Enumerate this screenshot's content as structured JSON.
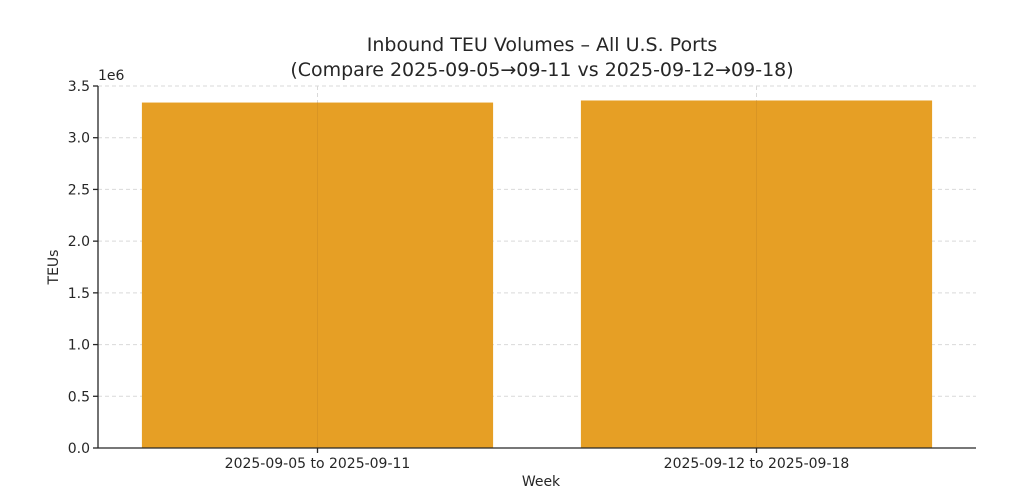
{
  "chart_data": {
    "type": "bar",
    "title": "Inbound TEU Volumes – All U.S. Ports",
    "subtitle": "(Compare 2025-09-05→09-11 vs 2025-09-12→09-18)",
    "xlabel": "Week",
    "ylabel": "TEUs",
    "y_offset_label": "1e6",
    "categories": [
      "2025-09-05 to 2025-09-11",
      "2025-09-12 to 2025-09-18"
    ],
    "values": [
      3340000,
      3360000
    ],
    "ylim": [
      0,
      3500000
    ],
    "y_ticks": [
      0,
      500000,
      1000000,
      1500000,
      2000000,
      2500000,
      3000000,
      3500000
    ],
    "y_tick_labels": [
      "0.0",
      "0.5",
      "1.0",
      "1.5",
      "2.0",
      "2.5",
      "3.0",
      "3.5"
    ],
    "grid": true,
    "bar_color": "#E69F25"
  }
}
